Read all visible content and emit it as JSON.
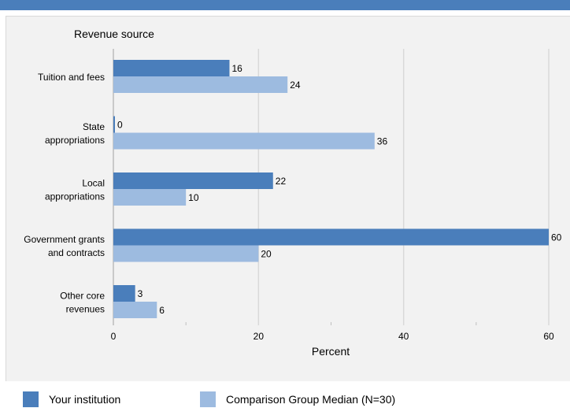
{
  "chart_data": {
    "type": "bar",
    "orientation": "horizontal",
    "y_axis_title": "Revenue source",
    "xlabel": "Percent",
    "xlim": [
      0,
      60
    ],
    "x_ticks": [
      0,
      20,
      40,
      60
    ],
    "grid": true,
    "legend_placement": "bottom",
    "categories": [
      [
        "Tuition and fees"
      ],
      [
        "State",
        "appropriations"
      ],
      [
        "Local",
        "appropriations"
      ],
      [
        "Government grants",
        "and contracts"
      ],
      [
        "Other core",
        "revenues"
      ]
    ],
    "series": [
      {
        "name": "Your institution",
        "color": "#4a7ebb",
        "values": [
          16,
          0,
          22,
          60,
          3
        ]
      },
      {
        "name": "Comparison Group Median (N=30)",
        "color": "#9dbbe0",
        "values": [
          24,
          36,
          10,
          20,
          6
        ]
      }
    ]
  },
  "colors": {
    "frame_background": "#f2f2f2",
    "gridline": "#d9d9d9",
    "top_rule": "#4a7ebb"
  }
}
